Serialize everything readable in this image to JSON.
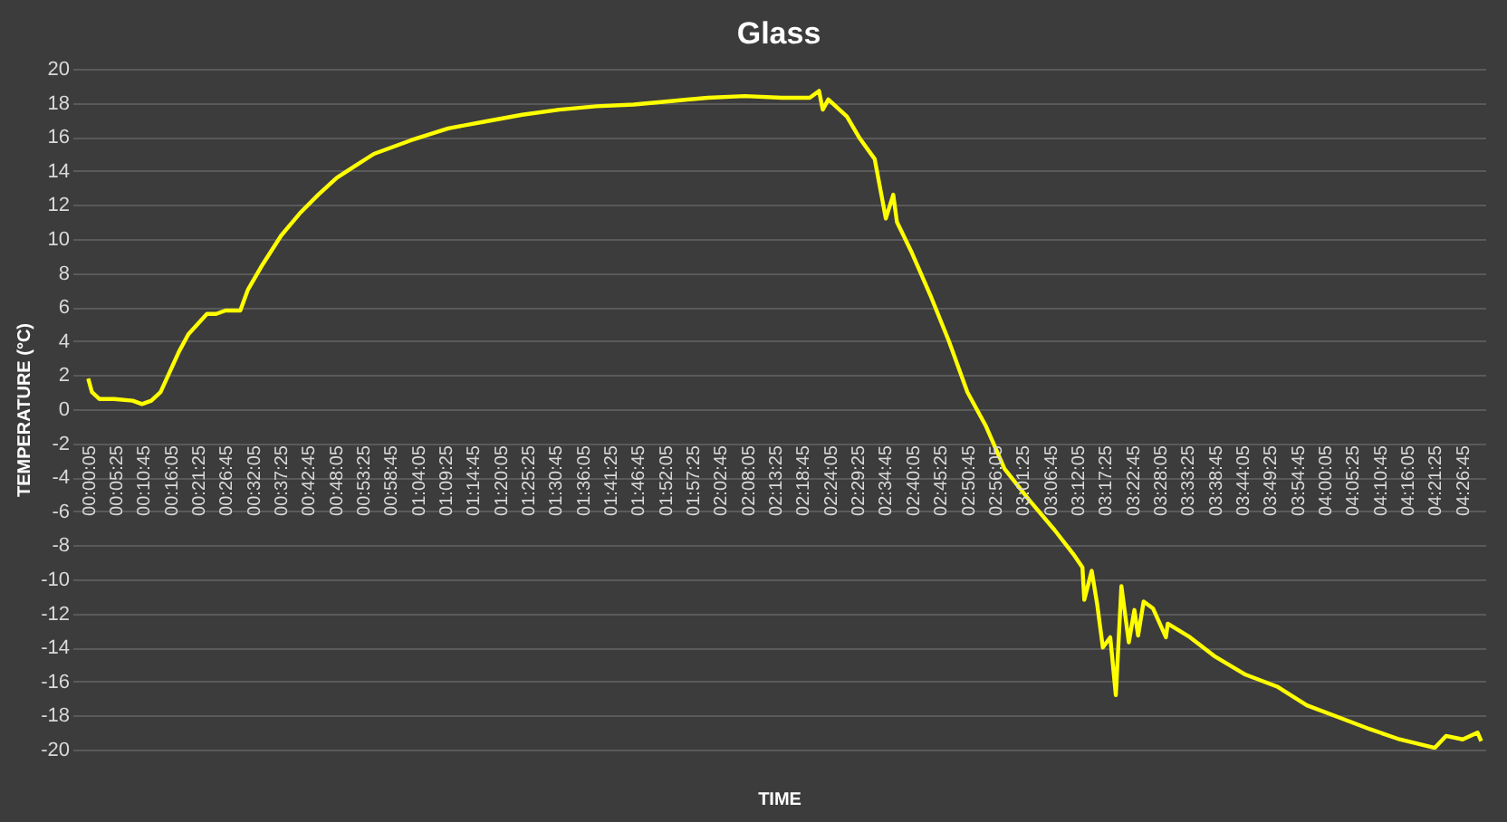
{
  "chart_data": {
    "type": "line",
    "title": "Glass",
    "xlabel": "TIME",
    "ylabel": "TEMPERATURE   (°C)",
    "x": [
      0.001,
      0.013,
      0.037,
      0.085,
      0.145,
      0.175,
      0.205,
      0.235,
      0.265,
      0.295,
      0.325,
      0.355,
      0.385,
      0.415,
      0.445,
      0.493,
      0.517,
      0.565,
      0.625,
      0.685,
      0.745,
      0.805,
      0.865,
      0.925,
      1.045,
      1.165,
      1.285,
      1.405,
      1.525,
      1.645,
      1.765,
      1.885,
      2.005,
      2.125,
      2.245,
      2.335,
      2.365,
      2.377,
      2.395,
      2.455,
      2.497,
      2.545,
      2.581,
      2.605,
      2.617,
      2.665,
      2.725,
      2.785,
      2.845,
      2.905,
      2.965,
      3.043,
      3.127,
      3.187,
      3.217,
      3.223,
      3.247,
      3.265,
      3.283,
      3.307,
      3.325,
      3.343,
      3.367,
      3.385,
      3.397,
      3.415,
      3.445,
      3.487,
      3.493,
      3.565,
      3.643,
      3.745,
      3.847,
      3.943,
      4.045,
      4.147,
      4.243,
      4.357,
      4.393,
      4.447,
      4.495,
      4.507
    ],
    "series": [
      {
        "color": "#ffff00",
        "values": [
          1.8,
          1.0,
          0.6,
          0.6,
          0.5,
          0.3,
          0.5,
          1.0,
          2.2,
          3.4,
          4.4,
          5.0,
          5.6,
          5.6,
          5.8,
          5.8,
          7.0,
          8.5,
          10.2,
          11.5,
          12.6,
          13.6,
          14.3,
          15.0,
          15.8,
          16.5,
          16.9,
          17.3,
          17.6,
          17.8,
          17.9,
          18.1,
          18.3,
          18.4,
          18.3,
          18.3,
          18.7,
          17.6,
          18.2,
          17.2,
          15.9,
          14.7,
          11.2,
          12.6,
          11.0,
          9.2,
          6.7,
          4.0,
          1.0,
          -1.0,
          -3.5,
          -5.3,
          -7.1,
          -8.5,
          -9.3,
          -11.2,
          -9.5,
          -11.5,
          -14.0,
          -13.4,
          -16.8,
          -10.4,
          -13.7,
          -11.8,
          -13.3,
          -11.3,
          -11.7,
          -13.4,
          -12.6,
          -13.4,
          -14.5,
          -15.6,
          -16.3,
          -17.4,
          -18.1,
          -18.8,
          -19.4,
          -19.9,
          -19.2,
          -19.4,
          -19.0,
          -19.5
        ]
      }
    ],
    "xlim": [
      -0.05,
      4.52
    ],
    "ylim": [
      -20,
      20
    ],
    "yticks": [
      -20,
      -18,
      -16,
      -14,
      -12,
      -10,
      -8,
      -6,
      -4,
      -2,
      0,
      2,
      4,
      6,
      8,
      10,
      12,
      14,
      16,
      18,
      20
    ],
    "xticks": [
      {
        "value": 0.0014,
        "label": "00:00:05"
      },
      {
        "value": 0.0903,
        "label": "00:05:25"
      },
      {
        "value": 0.1792,
        "label": "00:10:45"
      },
      {
        "value": 0.2681,
        "label": "00:16:05"
      },
      {
        "value": 0.3569,
        "label": "00:21:25"
      },
      {
        "value": 0.4458,
        "label": "00:26:45"
      },
      {
        "value": 0.5347,
        "label": "00:32:05"
      },
      {
        "value": 0.6236,
        "label": "00:37:25"
      },
      {
        "value": 0.7125,
        "label": "00:42:45"
      },
      {
        "value": 0.8014,
        "label": "00:48:05"
      },
      {
        "value": 0.8903,
        "label": "00:53:25"
      },
      {
        "value": 0.9792,
        "label": "00:58:45"
      },
      {
        "value": 1.0681,
        "label": "01:04:05"
      },
      {
        "value": 1.1569,
        "label": "01:09:25"
      },
      {
        "value": 1.2458,
        "label": "01:14:45"
      },
      {
        "value": 1.3347,
        "label": "01:20:05"
      },
      {
        "value": 1.4236,
        "label": "01:25:25"
      },
      {
        "value": 1.5125,
        "label": "01:30:45"
      },
      {
        "value": 1.6014,
        "label": "01:36:05"
      },
      {
        "value": 1.6903,
        "label": "01:41:25"
      },
      {
        "value": 1.7792,
        "label": "01:46:45"
      },
      {
        "value": 1.8681,
        "label": "01:52:05"
      },
      {
        "value": 1.9569,
        "label": "01:57:25"
      },
      {
        "value": 2.0458,
        "label": "02:02:45"
      },
      {
        "value": 2.1347,
        "label": "02:08:05"
      },
      {
        "value": 2.2236,
        "label": "02:13:25"
      },
      {
        "value": 2.3125,
        "label": "02:18:45"
      },
      {
        "value": 2.4014,
        "label": "02:24:05"
      },
      {
        "value": 2.4903,
        "label": "02:29:25"
      },
      {
        "value": 2.5792,
        "label": "02:34:45"
      },
      {
        "value": 2.6681,
        "label": "02:40:05"
      },
      {
        "value": 2.7569,
        "label": "02:45:25"
      },
      {
        "value": 2.8458,
        "label": "02:50:45"
      },
      {
        "value": 2.9347,
        "label": "02:56:05"
      },
      {
        "value": 3.0236,
        "label": "03:01:25"
      },
      {
        "value": 3.1125,
        "label": "03:06:45"
      },
      {
        "value": 3.2014,
        "label": "03:12:05"
      },
      {
        "value": 3.2903,
        "label": "03:17:25"
      },
      {
        "value": 3.3792,
        "label": "03:22:45"
      },
      {
        "value": 3.4681,
        "label": "03:28:05"
      },
      {
        "value": 3.5569,
        "label": "03:33:25"
      },
      {
        "value": 3.6458,
        "label": "03:38:45"
      },
      {
        "value": 3.7347,
        "label": "03:44:05"
      },
      {
        "value": 3.8236,
        "label": "03:49:25"
      },
      {
        "value": 3.9125,
        "label": "03:54:45"
      },
      {
        "value": 4.0014,
        "label": "04:00:05"
      },
      {
        "value": 4.0903,
        "label": "04:05:25"
      },
      {
        "value": 4.1792,
        "label": "04:10:45"
      },
      {
        "value": 4.2681,
        "label": "04:16:05"
      },
      {
        "value": 4.3569,
        "label": "04:21:25"
      },
      {
        "value": 4.4458,
        "label": "04:26:45"
      }
    ],
    "grid": "y",
    "line_style": "solid",
    "marker": "none"
  }
}
